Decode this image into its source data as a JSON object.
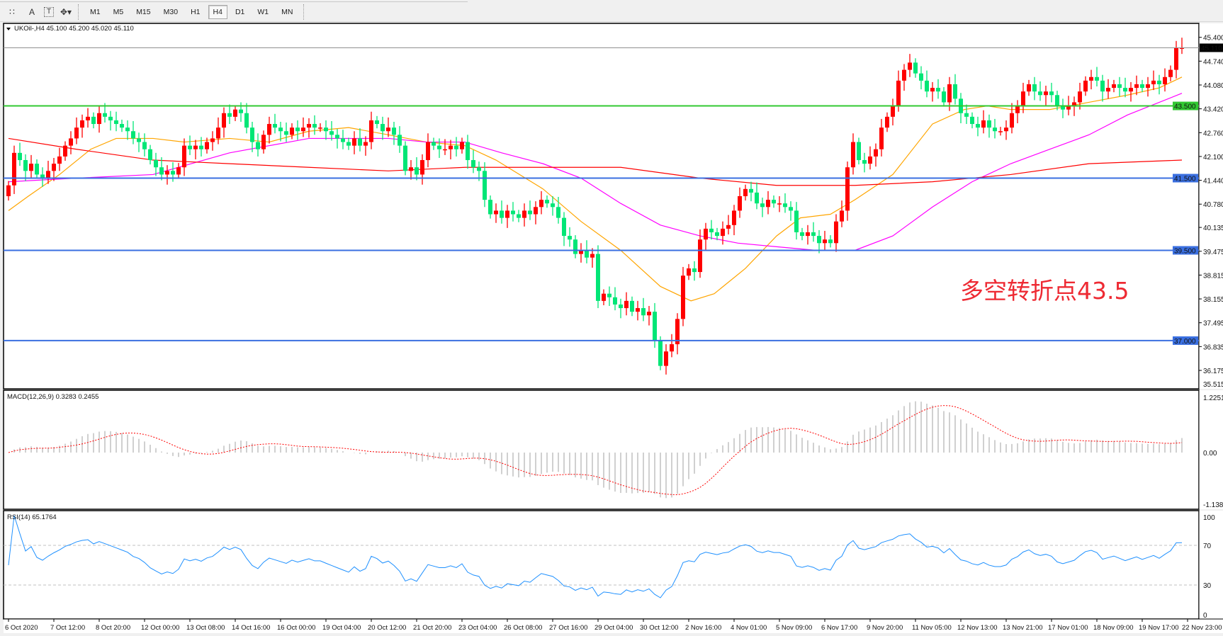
{
  "toolbar": {
    "icons": [
      "crosshair-grid-icon",
      "text-icon",
      "text-label-icon",
      "arrows-icon"
    ],
    "timeframes": [
      "M1",
      "M5",
      "M15",
      "M30",
      "H1",
      "H4",
      "D1",
      "W1",
      "MN"
    ],
    "active_timeframe": "H4"
  },
  "chart_header": {
    "symbol": "UKOil-,H4",
    "ohlc": "45.100 45.200 45.020 45.110"
  },
  "annotation": "多空转折点43.5",
  "colors": {
    "bull": "#ff0000",
    "bear": "#00e676",
    "ma_fast": "#ffa500",
    "ma_mid": "#ff00ff",
    "ma_slow": "#ff0000",
    "level_blue": "#3a6fe0",
    "level_green": "#32c832",
    "rsi": "#1e90ff",
    "macd_hist": "#c0c0c0",
    "macd_signal": "#ff0000"
  },
  "chart_data": [
    {
      "type": "candlestick",
      "title": "UKOil-,H4",
      "ylim": [
        35.515,
        45.4
      ],
      "yticks": [
        "45.400",
        "44.740",
        "44.080",
        "43.420",
        "42.760",
        "42.100",
        "41.440",
        "40.780",
        "40.135",
        "39.475",
        "38.815",
        "38.155",
        "37.495",
        "36.835",
        "36.175",
        "35.515"
      ],
      "xticks": [
        "6 Oct 2020",
        "7 Oct 12:00",
        "8 Oct 20:00",
        "12 Oct 00:00",
        "13 Oct 08:00",
        "14 Oct 16:00",
        "16 Oct 00:00",
        "19 Oct 04:00",
        "20 Oct 12:00",
        "21 Oct 20:00",
        "23 Oct 04:00",
        "26 Oct 08:00",
        "27 Oct 16:00",
        "29 Oct 04:00",
        "30 Oct 12:00",
        "2 Nov 16:00",
        "4 Nov 01:00",
        "5 Nov 09:00",
        "6 Nov 17:00",
        "9 Nov 20:00",
        "11 Nov 05:00",
        "12 Nov 13:00",
        "13 Nov 21:00",
        "17 Nov 01:00",
        "18 Nov 09:00",
        "19 Nov 17:00",
        "22 Nov 23:00"
      ],
      "first_open": 41.0,
      "closes": [
        41.3,
        42.2,
        42.0,
        41.7,
        41.9,
        41.6,
        41.5,
        41.7,
        41.9,
        42.1,
        42.4,
        42.6,
        42.9,
        43.1,
        43.2,
        43.0,
        43.3,
        43.2,
        43.1,
        43.0,
        42.9,
        42.8,
        42.6,
        42.5,
        42.3,
        42.0,
        41.8,
        41.6,
        41.7,
        41.6,
        41.8,
        42.4,
        42.3,
        42.4,
        42.3,
        42.5,
        42.6,
        42.9,
        43.3,
        43.2,
        43.4,
        43.3,
        42.9,
        42.5,
        42.3,
        42.7,
        43.0,
        42.9,
        42.8,
        42.7,
        42.9,
        42.8,
        42.9,
        43.0,
        42.9,
        42.9,
        42.8,
        42.7,
        42.6,
        42.5,
        42.4,
        42.6,
        42.4,
        42.5,
        43.1,
        43.0,
        42.8,
        42.9,
        42.7,
        42.4,
        41.7,
        41.8,
        41.6,
        42.0,
        42.5,
        42.4,
        42.3,
        42.3,
        42.4,
        42.3,
        42.5,
        42.0,
        41.8,
        41.7,
        40.9,
        40.5,
        40.6,
        40.4,
        40.6,
        40.5,
        40.4,
        40.6,
        40.5,
        40.7,
        40.9,
        40.8,
        40.7,
        40.4,
        39.9,
        39.8,
        39.4,
        39.5,
        39.3,
        39.4,
        38.1,
        38.3,
        38.2,
        38.0,
        37.9,
        38.1,
        37.8,
        37.9,
        37.7,
        37.8,
        37.0,
        36.3,
        36.7,
        36.9,
        37.6,
        38.8,
        39.0,
        38.9,
        39.8,
        40.1,
        40.0,
        39.9,
        40.1,
        40.2,
        40.6,
        41.0,
        41.2,
        41.1,
        40.8,
        40.7,
        40.9,
        40.8,
        40.8,
        40.7,
        40.6,
        40.0,
        39.9,
        40.0,
        39.9,
        39.7,
        39.8,
        39.7,
        40.3,
        40.6,
        41.8,
        42.5,
        42.0,
        41.9,
        42.1,
        42.3,
        42.9,
        43.2,
        43.5,
        44.2,
        44.5,
        44.7,
        44.4,
        44.2,
        43.9,
        44.0,
        43.9,
        43.6,
        44.1,
        43.7,
        43.3,
        43.2,
        43.0,
        42.9,
        43.1,
        42.9,
        42.8,
        42.8,
        42.9,
        43.3,
        43.5,
        43.9,
        44.1,
        43.9,
        43.8,
        43.9,
        43.8,
        43.5,
        43.4,
        43.5,
        43.6,
        43.9,
        44.2,
        44.3,
        44.2,
        43.9,
        44.0,
        44.1,
        44.0,
        43.9,
        44.0,
        44.1,
        44.0,
        44.1,
        44.2,
        44.1,
        44.3,
        44.5,
        45.1,
        45.11
      ],
      "current_price": "45.110",
      "levels": [
        {
          "price": 43.5,
          "label": "43.500",
          "color": "#32c832"
        },
        {
          "price": 41.5,
          "label": "41.500",
          "color": "#3a6fe0"
        },
        {
          "price": 39.5,
          "label": "39.500",
          "color": "#3a6fe0"
        },
        {
          "price": 37.0,
          "label": "37.000",
          "color": "#3a6fe0"
        }
      ],
      "moving_averages": [
        {
          "color": "#ffa500",
          "points": [
            [
              0,
              40.6
            ],
            [
              3.5,
              41.0
            ],
            [
              9,
              41.6
            ],
            [
              14.5,
              42.3
            ],
            [
              19,
              42.6
            ],
            [
              25.5,
              42.6
            ],
            [
              31,
              42.5
            ],
            [
              39,
              42.6
            ],
            [
              46,
              42.5
            ],
            [
              53,
              42.8
            ],
            [
              60,
              42.9
            ],
            [
              67,
              42.7
            ],
            [
              73.7,
              42.5
            ],
            [
              80.5,
              42.4
            ],
            [
              86,
              42.0
            ],
            [
              94.3,
              41.2
            ],
            [
              101,
              40.3
            ],
            [
              108,
              39.5
            ],
            [
              115,
              38.5
            ],
            [
              120.4,
              38.1
            ],
            [
              124.5,
              38.3
            ],
            [
              130,
              39.0
            ],
            [
              135.5,
              39.9
            ],
            [
              139.7,
              40.4
            ],
            [
              145,
              40.5
            ],
            [
              149.3,
              40.9
            ],
            [
              156,
              41.6
            ],
            [
              163,
              43.0
            ],
            [
              168.6,
              43.4
            ],
            [
              172.7,
              43.5
            ],
            [
              176.8,
              43.4
            ],
            [
              183.7,
              43.4
            ],
            [
              190.6,
              43.6
            ],
            [
              197.4,
              43.8
            ],
            [
              203,
              44.0
            ],
            [
              207,
              44.3
            ]
          ]
        },
        {
          "color": "#ff00ff",
          "points": [
            [
              0,
              41.4
            ],
            [
              12,
              41.5
            ],
            [
              25.5,
              41.6
            ],
            [
              39,
              42.2
            ],
            [
              53,
              42.6
            ],
            [
              60,
              42.6
            ],
            [
              67,
              42.6
            ],
            [
              73.7,
              42.5
            ],
            [
              80.5,
              42.5
            ],
            [
              87,
              42.2
            ],
            [
              94.3,
              41.9
            ],
            [
              101,
              41.5
            ],
            [
              108,
              40.8
            ],
            [
              115,
              40.2
            ],
            [
              122,
              39.9
            ],
            [
              128.7,
              39.7
            ],
            [
              135.5,
              39.6
            ],
            [
              142.5,
              39.5
            ],
            [
              149.3,
              39.5
            ],
            [
              156,
              39.9
            ],
            [
              163,
              40.7
            ],
            [
              170,
              41.4
            ],
            [
              176.8,
              41.9
            ],
            [
              183.7,
              42.3
            ],
            [
              190.6,
              42.7
            ],
            [
              197.4,
              43.25
            ],
            [
              207,
              43.85
            ]
          ]
        },
        {
          "color": "#ff0000",
          "points": [
            [
              0,
              42.6
            ],
            [
              12,
              42.3
            ],
            [
              25.5,
              42.0
            ],
            [
              39,
              41.9
            ],
            [
              53,
              41.8
            ],
            [
              67,
              41.7
            ],
            [
              80.5,
              41.8
            ],
            [
              94.3,
              41.8
            ],
            [
              108,
              41.8
            ],
            [
              122,
              41.5
            ],
            [
              135.5,
              41.3
            ],
            [
              149.3,
              41.3
            ],
            [
              163,
              41.4
            ],
            [
              176.8,
              41.6
            ],
            [
              190.6,
              41.9
            ],
            [
              207,
              42.0
            ]
          ]
        }
      ]
    },
    {
      "type": "macd",
      "label": "MACD(12,26,9) 0.3283 0.2455",
      "ylim": [
        -1.1383,
        1.2251
      ],
      "yticks": [
        "1.2251",
        "0.00",
        "-1.1383"
      ]
    },
    {
      "type": "rsi",
      "label": "RSI(14) 65.1764",
      "ylim": [
        0,
        100
      ],
      "levels": [
        70,
        30
      ],
      "yticks": [
        "100",
        "70",
        "30",
        "0"
      ]
    }
  ]
}
